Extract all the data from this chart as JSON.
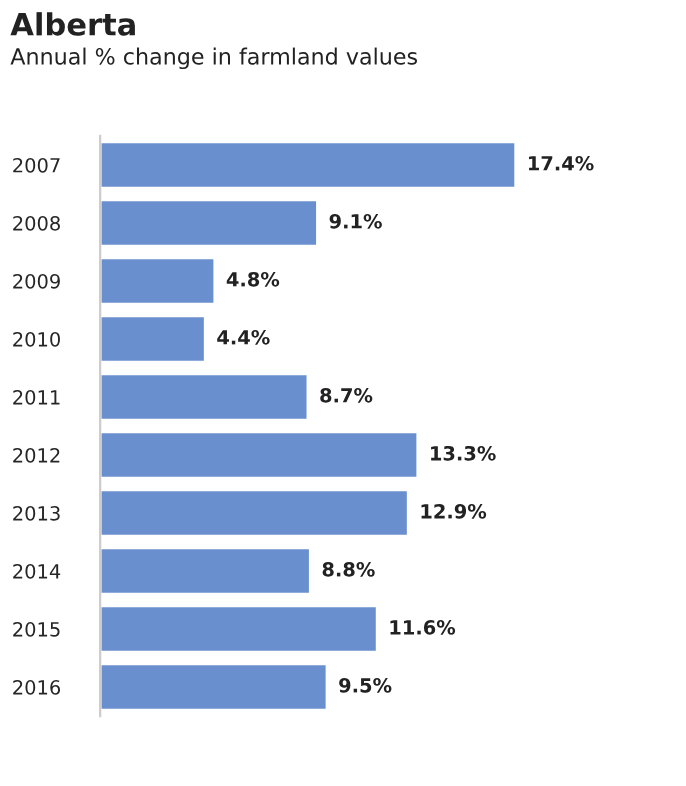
{
  "chart_data": {
    "type": "bar",
    "orientation": "horizontal",
    "title": "Alberta",
    "subtitle": "Annual % change in farmland values",
    "categories": [
      "2007",
      "2008",
      "2009",
      "2010",
      "2011",
      "2012",
      "2013",
      "2014",
      "2015",
      "2016"
    ],
    "values": [
      17.4,
      9.1,
      4.8,
      4.4,
      8.7,
      13.3,
      12.9,
      8.8,
      11.6,
      9.5
    ],
    "value_labels": [
      "17.4%",
      "9.1%",
      "4.8%",
      "4.4%",
      "8.7%",
      "13.3%",
      "12.9%",
      "8.8%",
      "11.6%",
      "9.5%"
    ],
    "color": "#6a8fcf",
    "tick_labels": "y",
    "grid": false,
    "legend": false
  }
}
